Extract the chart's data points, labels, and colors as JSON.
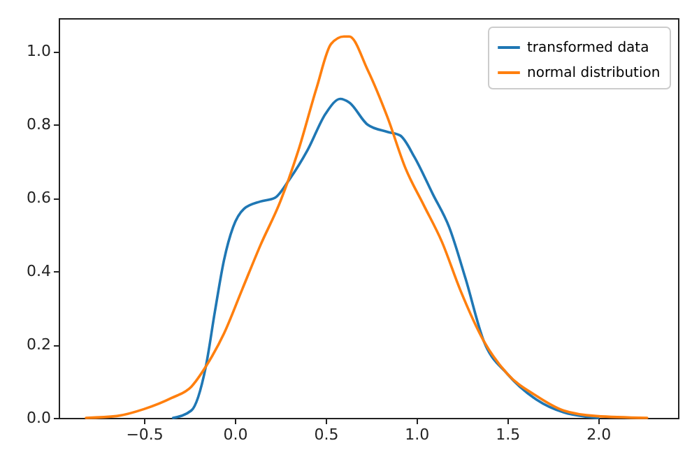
{
  "chart_data": {
    "type": "line",
    "xlim": [
      -0.97,
      2.44
    ],
    "ylim": [
      0,
      1.09
    ],
    "xticks": [
      {
        "value": -0.5,
        "label": "−0.5"
      },
      {
        "value": 0,
        "label": "0.0"
      },
      {
        "value": 0.5,
        "label": "0.5"
      },
      {
        "value": 1,
        "label": "1.0"
      },
      {
        "value": 1.5,
        "label": "1.5"
      },
      {
        "value": 2,
        "label": "2.0"
      }
    ],
    "yticks": [
      {
        "value": 0,
        "label": "0.0"
      },
      {
        "value": 0.2,
        "label": "0.2"
      },
      {
        "value": 0.4,
        "label": "0.4"
      },
      {
        "value": 0.6,
        "label": "0.6"
      },
      {
        "value": 0.8,
        "label": "0.8"
      },
      {
        "value": 1,
        "label": "1.0"
      }
    ],
    "grid": false,
    "legend": "top right",
    "marker": "none",
    "line_style": "solid",
    "series": [
      {
        "name": "transformed data",
        "color": "#1f77b4",
        "x": [
          -0.34,
          -0.24,
          -0.16,
          -0.11,
          -0.06,
          -0.01,
          0.05,
          0.14,
          0.22,
          0.3,
          0.4,
          0.5,
          0.58,
          0.63,
          0.73,
          0.84,
          0.91,
          0.99,
          1.09,
          1.18,
          1.27,
          1.37,
          1.5,
          1.66,
          1.81,
          1.94,
          2.0
        ],
        "values": [
          0,
          0.02,
          0.14,
          0.29,
          0.43,
          0.52,
          0.57,
          0.59,
          0.6,
          0.65,
          0.73,
          0.83,
          0.87,
          0.86,
          0.8,
          0.78,
          0.77,
          0.71,
          0.61,
          0.52,
          0.38,
          0.21,
          0.12,
          0.05,
          0.015,
          0.003,
          0
        ]
      },
      {
        "name": "normal distribution",
        "color": "#ff7f0e",
        "x": [
          -0.82,
          -0.65,
          -0.5,
          -0.35,
          -0.24,
          -0.16,
          -0.06,
          0.04,
          0.14,
          0.25,
          0.35,
          0.45,
          0.53,
          0.6,
          0.63,
          0.73,
          0.84,
          0.94,
          1.04,
          1.14,
          1.24,
          1.37,
          1.5,
          1.66,
          1.81,
          1.99,
          2.27
        ],
        "values": [
          0,
          0.005,
          0.024,
          0.054,
          0.085,
          0.14,
          0.23,
          0.35,
          0.47,
          0.59,
          0.73,
          0.9,
          1.02,
          1.04,
          1.04,
          0.95,
          0.82,
          0.68,
          0.58,
          0.48,
          0.35,
          0.21,
          0.12,
          0.06,
          0.02,
          0.005,
          0
        ]
      }
    ]
  }
}
